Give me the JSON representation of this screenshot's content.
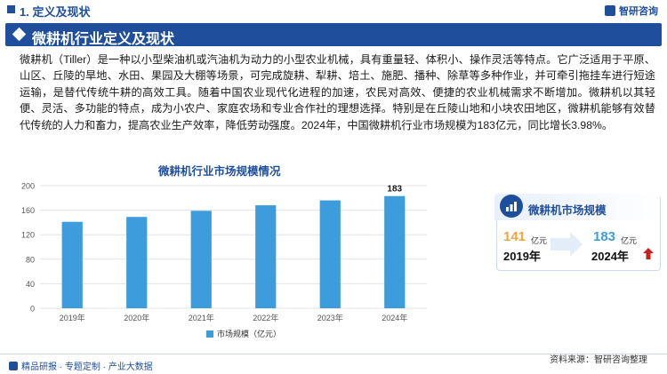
{
  "header": {
    "section": "1. 定义及现状",
    "logo": "智研咨询"
  },
  "title": "微耕机行业定义及现状",
  "description": "微耕机（Tiller）是一种以小型柴油机或汽油机为动力的小型农业机械，具有重量轻、体积小、操作灵活等特点。它广泛适用于平原、山区、丘陵的旱地、水田、果园及大棚等场景，可完成旋耕、犁耕、培土、施肥、播种、除草等多种作业，并可牵引拖挂车进行短途运输，是替代传统牛耕的高效工具。随着中国农业现代化进程的加速，农民对高效、便捷的农业机械需求不断增加。微耕机以其轻便、灵活、多功能的特点，成为小农户、家庭农场和专业合作社的理想选择。特别是在丘陵山地和小块农田地区，微耕机能够有效替代传统的人力和畜力，提高农业生产效率，降低劳动强度。2024年，中国微耕机行业市场规模为183亿元，同比增长3.98%。",
  "chart_data": {
    "type": "bar",
    "title": "微耕机行业市场规模情况",
    "categories": [
      "2019年",
      "2020年",
      "2021年",
      "2022年",
      "2023年",
      "2024年"
    ],
    "series": [
      {
        "name": "市场规模（亿元）",
        "values": [
          141,
          149,
          159,
          168,
          176,
          183
        ]
      }
    ],
    "data_labels": {
      "2024年": "183"
    },
    "yticks": [
      "0",
      "40",
      "80",
      "120",
      "160",
      "200"
    ],
    "ylim": [
      0,
      200
    ],
    "grid": true,
    "legend": "bottom",
    "bar_color": "#3d9cdc"
  },
  "panel": {
    "title": "微耕机市场规模",
    "from_value": "141",
    "from_unit": "亿元",
    "from_year": "2019年",
    "to_value": "183",
    "to_unit": "亿元",
    "to_year": "2024年"
  },
  "footer": {
    "left": "精品研报 · 专题定制 · 产业大数据",
    "right": "资料来源：智研咨询整理"
  },
  "colors": {
    "brand": "#1f4e9c",
    "bar": "#3d9cdc",
    "from_value": "#f3a43b",
    "up_arrow": "#c8201e"
  }
}
